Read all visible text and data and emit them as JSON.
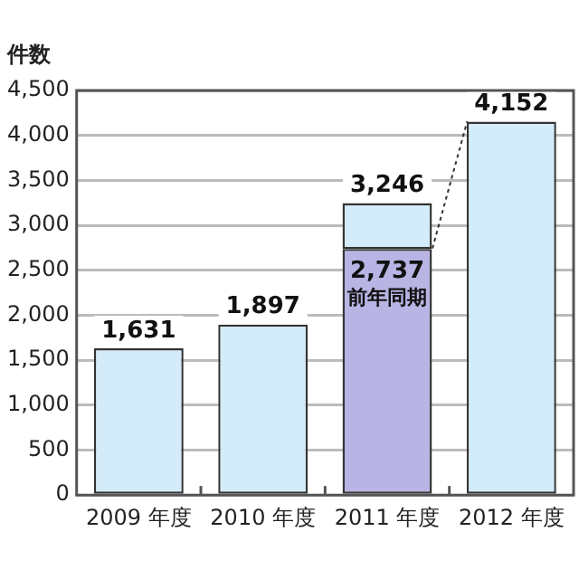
{
  "chart_data": {
    "type": "bar",
    "ylabel": "件数",
    "categories": [
      "2009 年度",
      "2010 年度",
      "2011 年度",
      "2012 年度"
    ],
    "stacked": true,
    "series": [
      {
        "name": "前年同期",
        "color": "#b8b4e4",
        "values": [
          null,
          null,
          2737,
          null
        ],
        "value_labels": [
          null,
          null,
          "2,737",
          null
        ]
      },
      {
        "color": "#d4ebfa",
        "values": [
          1631,
          1897,
          509,
          4152
        ]
      }
    ],
    "totals": [
      "1,631",
      "1,897",
      "3,246",
      "4,152"
    ],
    "ylim": [
      0,
      4500
    ],
    "yticks": [
      {
        "value": 0,
        "label": "0"
      },
      {
        "value": 500,
        "label": "500"
      },
      {
        "value": 1000,
        "label": "1,000"
      },
      {
        "value": 1500,
        "label": "1,500"
      },
      {
        "value": 2000,
        "label": "2,000"
      },
      {
        "value": 2500,
        "label": "2,500"
      },
      {
        "value": 3000,
        "label": "3,000"
      },
      {
        "value": 3500,
        "label": "3,500"
      },
      {
        "value": 4000,
        "label": "4,000"
      },
      {
        "value": 4500,
        "label": "4,500"
      }
    ],
    "grid": "y",
    "legend": false
  }
}
